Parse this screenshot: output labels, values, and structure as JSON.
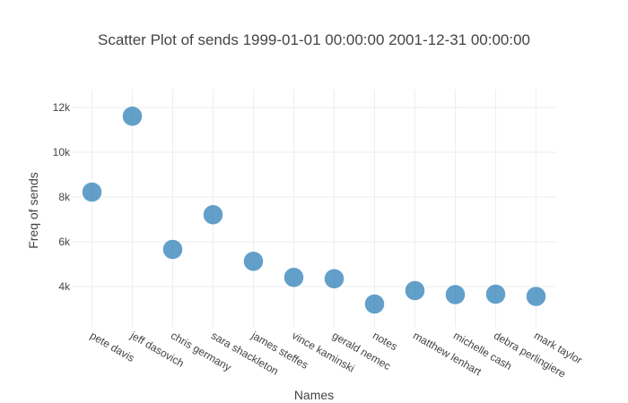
{
  "chart_data": {
    "type": "scatter",
    "title": "Scatter Plot of sends 1999-01-01 00:00:00 2001-12-31 00:00:00",
    "xlabel": "Names",
    "ylabel": "Freq of sends",
    "categories": [
      "pete davis",
      "jeff dasovich",
      "chris germany",
      "sara shackleton",
      "james steffes",
      "vince kaminski",
      "gerald nemec",
      "notes",
      "matthew lenhart",
      "michelle cash",
      "debra perlingiere",
      "mark taylor"
    ],
    "values": [
      8220,
      11610,
      5660,
      7210,
      5130,
      4410,
      4350,
      3220,
      3820,
      3640,
      3660,
      3560
    ],
    "y_ticks": [
      4000,
      6000,
      8000,
      10000,
      12000
    ],
    "y_tick_labels": [
      "4k",
      "6k",
      "8k",
      "10k",
      "12k"
    ],
    "ylim": [
      2200,
      12800
    ],
    "grid": true,
    "color": "#1f77b4"
  }
}
